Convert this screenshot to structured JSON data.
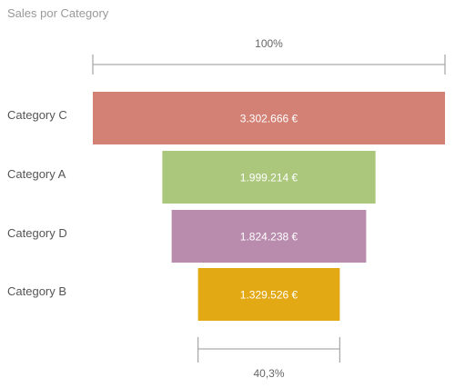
{
  "chart_data": {
    "type": "funnel",
    "title": "Sales por Category",
    "categories": [
      "Category C",
      "Category A",
      "Category D",
      "Category B"
    ],
    "values": [
      3302666,
      1999214,
      1824238,
      1329526
    ],
    "value_labels": [
      "3.302.666 €",
      "1.999.214 €",
      "1.824.238 €",
      "1.329.526 €"
    ],
    "colors": [
      "#D38075",
      "#ABC77B",
      "#B98BAC",
      "#E2A915"
    ],
    "top_percent_label": "100%",
    "bottom_percent_label": "40,3%",
    "bottom_percent_value": 40.3
  }
}
